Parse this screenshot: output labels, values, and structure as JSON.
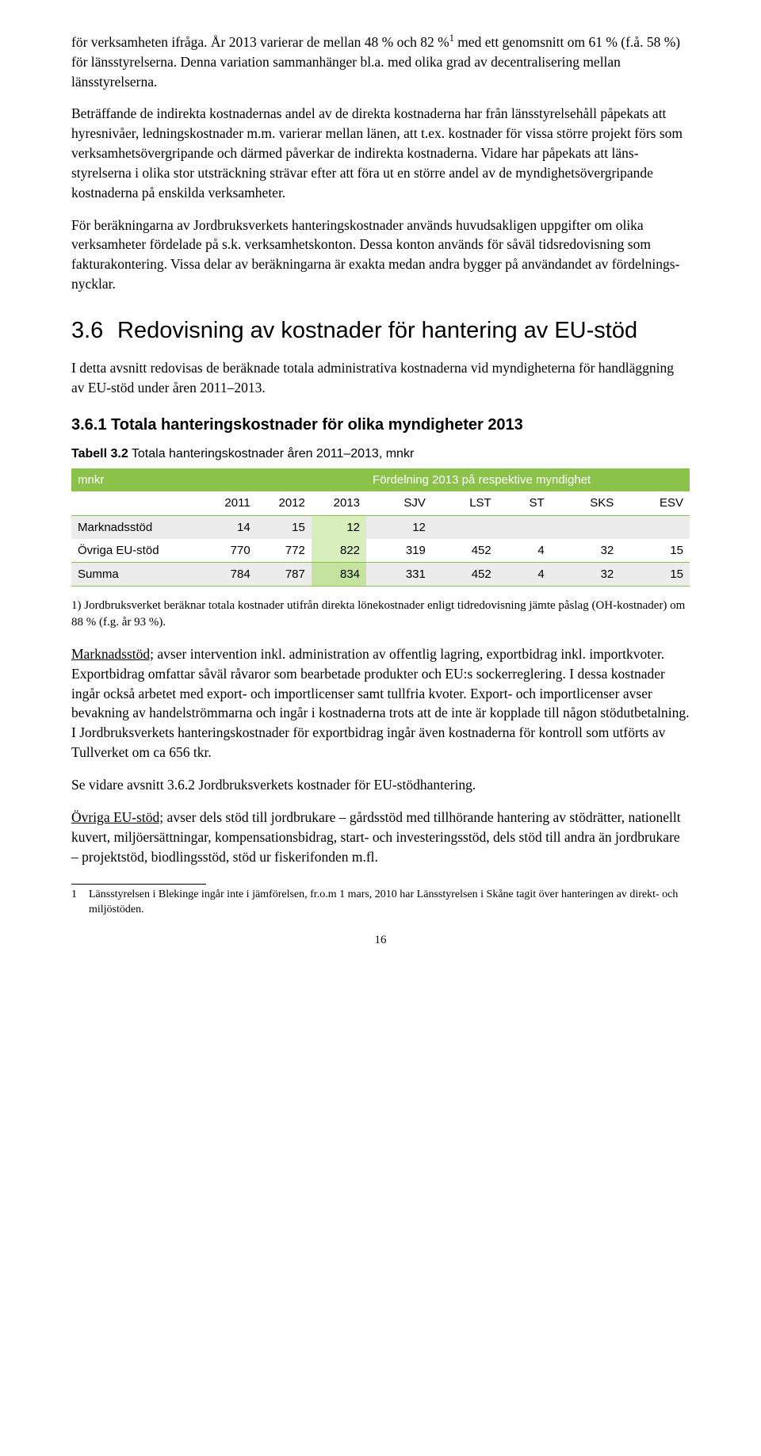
{
  "para1": "för verksamheten ifråga. År 2013 varierar de mellan 48 % och 82 %",
  "para1_fn": "1",
  "para1b": " med ett genomsnitt om 61 % (f.å. 58 %) för länsstyrelserna. Denna variation samman­hänger bl.a. med olika grad av decentralisering mellan länsstyrelserna.",
  "para2": "Beträffande de indirekta kostnadernas andel av de direkta kostnaderna har från länsstyrelsehåll påpekats att hyresnivåer, ledningskostnader m.m. varierar mellan länen, att t.ex. kostnader för vissa större projekt förs som verksamhetsövergripande och därmed påverkar de indirekta kostnaderna. Vidare har påpekats att läns­styrelserna i olika stor utsträckning strävar efter att föra ut en större andel av de myndighetsövergripande kostnaderna på enskilda verksamheter.",
  "para3": "För beräkningarna av Jordbruksverkets hanteringskostnader används huvud­sakligen uppgifter om olika verksamheter fördelade på s.k. verksamhetskonton. Dessa konton används för såväl tidsredovisning som fakturakontering. Vissa delar av beräkningarna är exakta medan andra bygger på användandet av fördelnings­nycklar.",
  "h2_num": "3.6",
  "h2_text": "Redovisning av kostnader för hantering av EU-stöd",
  "para4": "I detta avsnitt redovisas de beräknade totala administrativa kostnaderna vid myndigheterna för handläggning av EU-stöd under åren 2011–2013.",
  "h3_text": "3.6.1  Totala hanteringskostnader för olika myndigheter 2013",
  "table_caption_bold": "Tabell 3.2",
  "table_caption_rest": " Totala hanteringskostnader åren 2011–2013, mnkr",
  "hdr_left": "mnkr",
  "hdr_right": "Fördelning 2013 på respektive myndighet",
  "years": {
    "c1": "2011",
    "c2": "2012",
    "c3": "2013",
    "c4": "SJV",
    "c5": "LST",
    "c6": "ST",
    "c7": "SKS",
    "c8": "ESV"
  },
  "row1": {
    "label": "Marknadsstöd",
    "c1": "14",
    "c2": "15",
    "c3": "12",
    "c4": "12",
    "c5": "",
    "c6": "",
    "c7": "",
    "c8": ""
  },
  "row2": {
    "label": "Övriga EU-stöd",
    "c1": "770",
    "c2": "772",
    "c3": "822",
    "c4": "319",
    "c5": "452",
    "c6": "4",
    "c7": "32",
    "c8": "15"
  },
  "row3": {
    "label": "Summa",
    "c1": "784",
    "c2": "787",
    "c3": "834",
    "c4": "331",
    "c5": "452",
    "c6": "4",
    "c7": "32",
    "c8": "15"
  },
  "table_note": "1) Jordbruksverket beräknar totala kostnader utifrån direkta lönekostnader enligt tidredovisning jämte påslag  (OH-kostnader) om 88 % (f.g. år 93 %).",
  "para5_u": "Marknadsstöd;",
  "para5": " avser intervention inkl. administration av offentlig lagring, exportbidrag inkl. importkvoter. Exportbidrag omfattar såväl råvaror som bearbetade produkter och EU:s sockerreglering. I dessa kostnader ingår också arbetet med export- och importlicenser samt tullfria kvoter. Export- och importlicenser avser bevakning av handelströmmarna och ingår i kostnaderna trots att de inte är kopplade till någon stödutbetalning. I Jordbruksverkets hanteringskostnader för exportbidrag ingår även kostnaderna för kontroll som utförts av Tullverket om ca 656 tkr.",
  "para6": "Se vidare avsnitt 3.6.2 Jordbruksverkets kostnader för EU-stödhantering.",
  "para7_u": "Övriga EU-stöd;",
  "para7": " avser dels stöd till jordbrukare – gårdsstöd med tillhörande hantering av stödrätter, nationellt kuvert, miljöersättningar, kompensationsbidrag, start- och investeringsstöd, dels stöd till andra än jordbrukare – projektstöd, biodlingsstöd, stöd ur fiskerifonden m.fl.",
  "footnote_num": "1",
  "footnote_text": "Länsstyrelsen i Blekinge ingår inte i jämförelsen, fr.o.m 1 mars, 2010 har Länsstyrelsen i Skåne tagit över hanteringen av direkt- och miljöstöden.",
  "page_number": "16"
}
